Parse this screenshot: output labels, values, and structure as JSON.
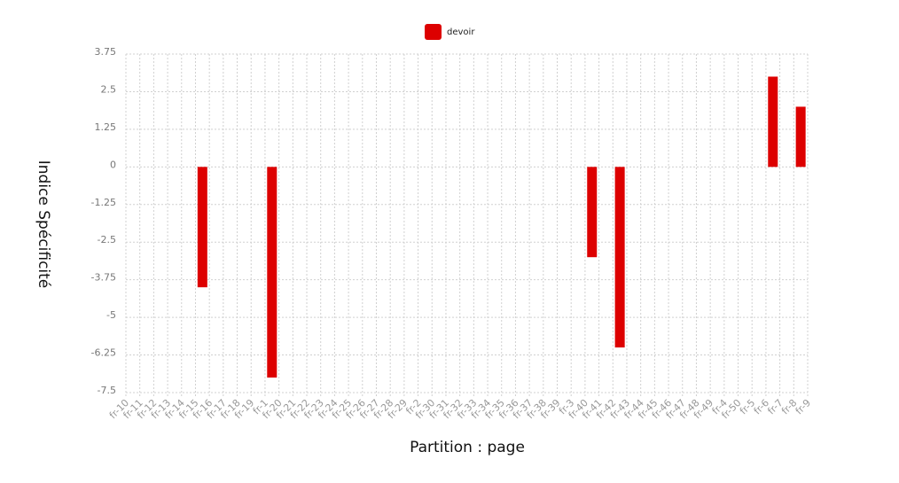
{
  "chart_data": {
    "type": "bar",
    "xlabel": "Partition : page",
    "ylabel": "Indice Spécificité",
    "ylim": [
      -7.5,
      3.75
    ],
    "yticks": [
      "3.75",
      "2.5",
      "1.25",
      "0",
      "-1.25",
      "-2.5",
      "-3.75",
      "-5",
      "-6.25",
      "-7.5"
    ],
    "grid": true,
    "legend_position": "top-center",
    "categories": [
      "fr-10",
      "fr-11",
      "fr-12",
      "fr-13",
      "fr-14",
      "fr-15",
      "fr-16",
      "fr-17",
      "fr-18",
      "fr-19",
      "fr-1",
      "fr-20",
      "fr-21",
      "fr-22",
      "fr-23",
      "fr-24",
      "fr-25",
      "fr-26",
      "fr-27",
      "fr-28",
      "fr-29",
      "fr-2",
      "fr-30",
      "fr-31",
      "fr-32",
      "fr-33",
      "fr-34",
      "fr-35",
      "fr-36",
      "fr-37",
      "fr-38",
      "fr-39",
      "fr-3",
      "fr-40",
      "fr-41",
      "fr-42",
      "fr-43",
      "fr-44",
      "fr-45",
      "fr-46",
      "fr-47",
      "fr-48",
      "fr-49",
      "fr-4",
      "fr-50",
      "fr-5",
      "fr-6",
      "fr-7",
      "fr-8",
      "fr-9"
    ],
    "series": [
      {
        "name": "devoir",
        "color": "#dd0000",
        "values": [
          0,
          0,
          0,
          0,
          0,
          -4,
          0,
          0,
          0,
          0,
          -7,
          0,
          0,
          0,
          0,
          0,
          0,
          0,
          0,
          0,
          0,
          0,
          0,
          0,
          0,
          0,
          0,
          0,
          0,
          0,
          0,
          0,
          0,
          -3,
          0,
          -6,
          0,
          0,
          0,
          0,
          0,
          0,
          0,
          0,
          0,
          0,
          3,
          0,
          2,
          0
        ]
      }
    ]
  }
}
